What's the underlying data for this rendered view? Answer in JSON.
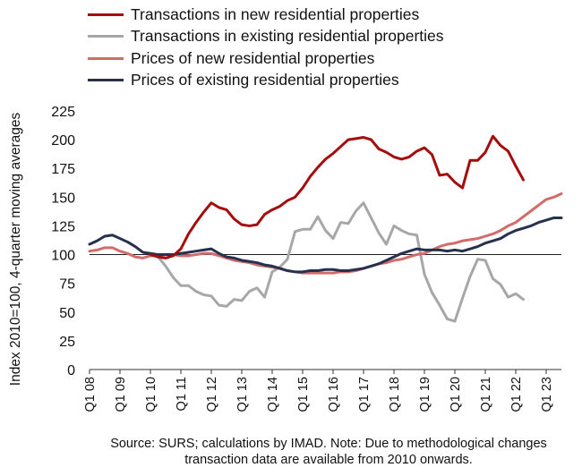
{
  "chart_data": {
    "type": "line",
    "title": "",
    "xlabel": "",
    "ylabel": "Index 2010=100, 4-quarter moving averages",
    "ylim": [
      0,
      225
    ],
    "yticks": [
      0,
      25,
      50,
      75,
      100,
      125,
      150,
      175,
      200,
      225
    ],
    "reference_line": 100,
    "x_start": "Q1 08",
    "x_tick_labels": [
      "Q1 08",
      "Q1 09",
      "Q1 10",
      "Q1 11",
      "Q1 12",
      "Q1 13",
      "Q1 14",
      "Q1 15",
      "Q1 16",
      "Q1 17",
      "Q1 18",
      "Q1 19",
      "Q1 20",
      "Q1 21",
      "Q1 22",
      "Q1 23"
    ],
    "series": [
      {
        "name": "Transactions in new residential properties",
        "color": "#a50d0d",
        "start_index": 8,
        "values": [
          100,
          98,
          97,
          99,
          105,
          118,
          128,
          137,
          145,
          141,
          139,
          131,
          126,
          125,
          126,
          135,
          139,
          142,
          147,
          150,
          158,
          168,
          176,
          183,
          188,
          194,
          200,
          201,
          202,
          200,
          192,
          189,
          185,
          183,
          185,
          190,
          193,
          187,
          169,
          170,
          163,
          158,
          182,
          182,
          189,
          203,
          195,
          190,
          177,
          165
        ]
      },
      {
        "name": "Transactions in existing residential properties",
        "color": "#a6a7a9",
        "start_index": 8,
        "values": [
          100,
          98,
          90,
          80,
          73,
          73,
          68,
          65,
          64,
          56,
          55,
          61,
          60,
          68,
          71,
          63,
          85,
          89,
          96,
          120,
          122,
          122,
          133,
          121,
          114,
          128,
          127,
          138,
          145,
          132,
          119,
          109,
          125,
          121,
          118,
          117,
          83,
          67,
          56,
          44,
          42,
          62,
          81,
          96,
          95,
          79,
          74,
          63,
          66,
          61
        ]
      },
      {
        "name": "Prices of new residential properties",
        "color": "#d36b6b",
        "start_index": 0,
        "values": [
          103,
          104,
          106,
          106,
          103,
          101,
          98,
          97,
          99,
          99,
          100,
          100,
          99,
          99,
          100,
          101,
          101,
          99,
          97,
          95,
          94,
          93,
          91,
          90,
          89,
          88,
          86,
          85,
          84,
          84,
          84,
          84,
          84,
          85,
          85,
          86,
          88,
          90,
          92,
          93,
          95,
          96,
          98,
          100,
          101,
          104,
          107,
          109,
          110,
          112,
          113,
          114,
          116,
          118,
          121,
          125,
          128,
          133,
          138,
          143,
          148,
          150,
          153
        ]
      },
      {
        "name": "Prices of existing residential properties",
        "color": "#26304f",
        "start_index": 0,
        "values": [
          109,
          112,
          116,
          117,
          114,
          111,
          107,
          102,
          101,
          100,
          100,
          100,
          101,
          102,
          103,
          104,
          105,
          101,
          98,
          97,
          95,
          94,
          93,
          91,
          90,
          88,
          86,
          85,
          85,
          86,
          86,
          87,
          87,
          86,
          86,
          87,
          88,
          90,
          92,
          95,
          98,
          101,
          103,
          105,
          104,
          104,
          104,
          103,
          104,
          103,
          105,
          107,
          110,
          112,
          114,
          118,
          121,
          123,
          125,
          128,
          130,
          132,
          132
        ]
      }
    ]
  },
  "source_note": "Source: SURS; calculations by IMAD. Note: Due to methodological changes transaction data are available from 2010 onwards."
}
